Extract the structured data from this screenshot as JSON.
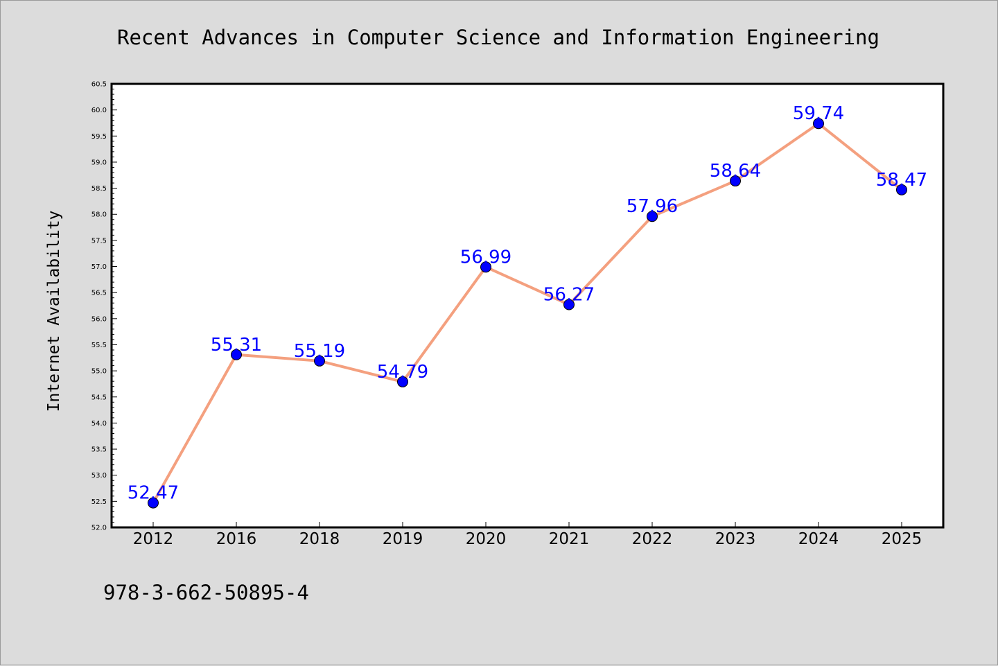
{
  "chart_data": {
    "type": "line",
    "title": "Recent Advances in Computer Science and Information Engineering",
    "xlabel": "",
    "ylabel": "Internet Availability",
    "categories": [
      "2012",
      "2016",
      "2018",
      "2019",
      "2020",
      "2021",
      "2022",
      "2023",
      "2024",
      "2025"
    ],
    "series": [
      {
        "values": [
          52.47,
          55.31,
          55.19,
          54.79,
          56.99,
          56.27,
          57.96,
          58.64,
          59.74,
          58.47
        ],
        "data_labels": [
          "52.47",
          "55.31",
          "55.19",
          "54.79",
          "56.99",
          "56.27",
          "57.96",
          "58.64",
          "59.74",
          "58.47"
        ]
      }
    ],
    "ylim": [
      52.0,
      60.5
    ],
    "ytick_labels": [
      "52.0",
      "52.5",
      "53.0",
      "53.5",
      "54.0",
      "54.5",
      "55.0",
      "55.5",
      "56.0",
      "56.5",
      "57.0",
      "57.5",
      "58.0",
      "58.5",
      "59.0",
      "59.5",
      "60.0",
      "60.5"
    ],
    "grid": false,
    "legend": "none",
    "colors": {
      "line": "#f4a07f",
      "marker": "#0000ff",
      "label": "#0000ff",
      "plot_background": "#ffffff",
      "page_background": "#dcdcdc"
    }
  },
  "footer": {
    "isbn": "978-3-662-50895-4"
  }
}
